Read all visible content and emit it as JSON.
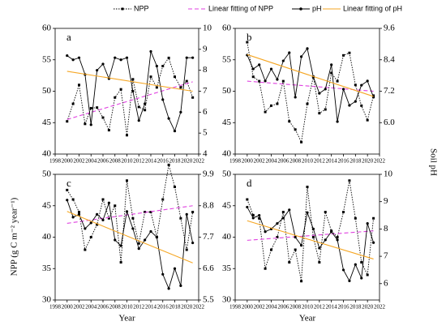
{
  "chart_data": [
    {
      "type": "line",
      "label": "a",
      "y_label": "NPP (g C m⁻² year⁻¹)",
      "y2_label": "Soil pH",
      "xlim": [
        1998,
        2022
      ],
      "xticks": [
        1998,
        2000,
        2002,
        2004,
        2006,
        2008,
        2010,
        2012,
        2014,
        2016,
        2018,
        2020,
        2022
      ],
      "ylim": [
        40,
        60
      ],
      "yticks": [
        40,
        45,
        50,
        55,
        60
      ],
      "y2lim": [
        4,
        10
      ],
      "y2ticks": [
        4,
        5,
        6,
        7,
        8,
        9,
        10
      ],
      "x": [
        2000,
        2001,
        2002,
        2003,
        2004,
        2005,
        2006,
        2007,
        2008,
        2009,
        2010,
        2011,
        2012,
        2013,
        2014,
        2015,
        2016,
        2017,
        2018,
        2019,
        2020,
        2021
      ],
      "series": [
        {
          "name": "NPP",
          "color": "#000000",
          "style": "dotted",
          "marker": "square",
          "values": [
            45.2,
            48,
            51,
            44.8,
            47.3,
            47.4,
            45.8,
            43.8,
            49,
            50.3,
            43,
            51.9,
            47.5,
            47,
            52.3,
            50.6,
            54,
            55.3,
            52.3,
            50.6,
            51.6,
            49
          ]
        },
        {
          "name": "Linear fitting of NPP",
          "color": "#e040e0",
          "style": "dashed",
          "x": [
            2000,
            2021
          ],
          "values": [
            45.5,
            51.5
          ]
        },
        {
          "name": "pH",
          "color": "#000000",
          "style": "solid",
          "marker": "circle",
          "axis": "y2",
          "values": [
            8.7,
            8.5,
            8.6,
            7.8,
            5.4,
            8.0,
            8.3,
            7.6,
            8.6,
            8.5,
            8.6,
            7.0,
            5.6,
            6.4,
            8.9,
            8.2,
            6.6,
            5.7,
            5.1,
            6.0,
            8.6,
            8.6
          ]
        },
        {
          "name": "Linear fitting of pH",
          "color": "#f5a623",
          "style": "solid",
          "axis": "y2",
          "x": [
            2000,
            2021
          ],
          "values": [
            7.95,
            7.0
          ]
        }
      ]
    },
    {
      "type": "line",
      "label": "b",
      "xlim": [
        1998,
        2022
      ],
      "xticks": [
        1998,
        2000,
        2002,
        2004,
        2006,
        2008,
        2010,
        2012,
        2014,
        2016,
        2018,
        2020,
        2022
      ],
      "ylim": [
        40,
        60
      ],
      "yticks": [
        40,
        45,
        50,
        55,
        60
      ],
      "y2lim": [
        4.8,
        9.6
      ],
      "y2ticks": [
        {
          "value": 6,
          "label": "6.0"
        },
        7.2,
        8.4,
        9.6
      ],
      "x": [
        2000,
        2001,
        2002,
        2003,
        2004,
        2005,
        2006,
        2007,
        2008,
        2009,
        2010,
        2011,
        2012,
        2013,
        2014,
        2015,
        2016,
        2017,
        2018,
        2019,
        2020,
        2021
      ],
      "series": [
        {
          "name": "NPP",
          "color": "#000000",
          "style": "dotted",
          "marker": "square",
          "values": [
            57.8,
            52.3,
            51.6,
            46.7,
            47.7,
            48,
            51.6,
            45.2,
            43.9,
            41.9,
            48,
            52.3,
            46.5,
            47.1,
            52.9,
            51.6,
            55.7,
            56.1,
            51,
            47.7,
            45.4,
            49.3
          ]
        },
        {
          "name": "Linear fitting of NPP",
          "color": "#e040e0",
          "style": "dashed",
          "x": [
            2000,
            2021
          ],
          "values": [
            51.6,
            50
          ]
        },
        {
          "name": "pH",
          "color": "#000000",
          "style": "solid",
          "marker": "circle",
          "axis": "y2",
          "values": [
            8.58,
            8.05,
            8.21,
            7.59,
            8.05,
            7.65,
            8.36,
            8.67,
            6.97,
            8.52,
            8.83,
            7.74,
            7.12,
            7.28,
            8.21,
            6.04,
            7.28,
            6.66,
            6.81,
            7.43,
            7.59,
            6.97
          ]
        },
        {
          "name": "Linear fitting of pH",
          "color": "#f5a623",
          "style": "solid",
          "axis": "y2",
          "x": [
            2000,
            2021
          ],
          "values": [
            8.6,
            7.0
          ]
        }
      ]
    },
    {
      "type": "line",
      "label": "c",
      "x_label": "Year",
      "xlim": [
        1998,
        2022
      ],
      "xticks": [
        1998,
        2000,
        2002,
        2004,
        2006,
        2008,
        2010,
        2012,
        2014,
        2016,
        2018,
        2020,
        2022
      ],
      "ylim": [
        30,
        50
      ],
      "yticks": [
        30,
        35,
        40,
        45,
        50
      ],
      "y2lim": [
        5.5,
        9.9
      ],
      "y2ticks": [
        5.5,
        6.6,
        7.7,
        8.8,
        9.9
      ],
      "x": [
        2000,
        2001,
        2002,
        2003,
        2004,
        2005,
        2006,
        2007,
        2008,
        2009,
        2010,
        2011,
        2012,
        2013,
        2014,
        2015,
        2016,
        2017,
        2018,
        2019,
        2020,
        2021
      ],
      "series": [
        {
          "name": "NPP",
          "color": "#000000",
          "style": "dotted",
          "marker": "square",
          "values": [
            47.5,
            46,
            44,
            38,
            40,
            42,
            46,
            43,
            45,
            36,
            49,
            43,
            39,
            44,
            44,
            40,
            46,
            51.5,
            48,
            43,
            38,
            44
          ]
        },
        {
          "name": "Linear fitting of NPP",
          "color": "#e040e0",
          "style": "dashed",
          "x": [
            2000,
            2021
          ],
          "values": [
            42.2,
            45
          ]
        },
        {
          "name": "pH",
          "color": "#000000",
          "style": "solid",
          "marker": "circle",
          "axis": "y2",
          "values": [
            9.0,
            8.4,
            8.5,
            8.0,
            8.2,
            8.5,
            8.3,
            8.9,
            7.6,
            7.4,
            8.6,
            8.0,
            7.3,
            7.6,
            7.9,
            7.7,
            6.4,
            5.9,
            6.6,
            6.0,
            8.5,
            7.5
          ]
        },
        {
          "name": "Linear fitting of pH",
          "color": "#f5a623",
          "style": "solid",
          "axis": "y2",
          "x": [
            2000,
            2021
          ],
          "values": [
            8.6,
            6.8
          ]
        }
      ]
    },
    {
      "type": "line",
      "label": "d",
      "x_label": "Year",
      "xlim": [
        1998,
        2022
      ],
      "xticks": [
        1998,
        2000,
        2002,
        2004,
        2006,
        2008,
        2010,
        2012,
        2014,
        2016,
        2018,
        2020,
        2022
      ],
      "ylim": [
        30,
        50
      ],
      "yticks": [
        30,
        35,
        40,
        45,
        50
      ],
      "y2lim": [
        5.4,
        10
      ],
      "y2ticks": [
        6,
        7,
        8,
        9,
        10
      ],
      "x": [
        2000,
        2001,
        2002,
        2003,
        2004,
        2005,
        2006,
        2007,
        2008,
        2009,
        2010,
        2011,
        2012,
        2013,
        2014,
        2015,
        2016,
        2017,
        2018,
        2019,
        2020,
        2021
      ],
      "series": [
        {
          "name": "NPP",
          "color": "#000000",
          "style": "dotted",
          "marker": "square",
          "values": [
            46,
            43.5,
            43,
            35,
            38,
            40,
            44,
            36,
            38,
            33,
            48,
            40,
            36,
            44,
            41,
            40,
            44,
            49,
            43,
            36,
            34,
            43
          ]
        },
        {
          "name": "Linear fitting of NPP",
          "color": "#e040e0",
          "style": "dashed",
          "x": [
            2000,
            2021
          ],
          "values": [
            39.5,
            41
          ]
        },
        {
          "name": "pH",
          "color": "#000000",
          "style": "solid",
          "marker": "circle",
          "axis": "y2",
          "values": [
            8.8,
            8.4,
            8.5,
            7.9,
            8.0,
            8.2,
            8.4,
            8.7,
            7.7,
            7.4,
            8.6,
            8.0,
            7.3,
            7.6,
            7.9,
            7.6,
            6.5,
            6.1,
            6.7,
            6.2,
            8.2,
            7.5
          ]
        },
        {
          "name": "Linear fitting of pH",
          "color": "#f5a623",
          "style": "solid",
          "axis": "y2",
          "x": [
            2000,
            2021
          ],
          "values": [
            8.3,
            6.9
          ]
        }
      ]
    }
  ]
}
